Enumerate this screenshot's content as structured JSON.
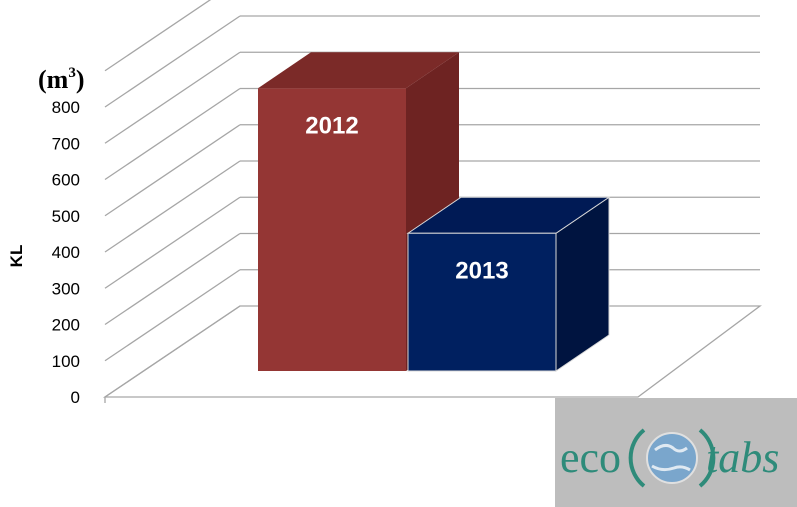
{
  "chart_data": {
    "type": "bar",
    "categories": [
      "2012",
      "2013"
    ],
    "values": [
      780,
      380
    ],
    "ylabel": "KL",
    "unit_base": "(m",
    "unit_sup": "3",
    "unit_close": ")",
    "ylim": [
      0,
      800
    ],
    "yticks": [
      0,
      100,
      200,
      300,
      400,
      500,
      600,
      700,
      800
    ],
    "grid": true,
    "three_d": true,
    "colors": [
      "#943634",
      "#002060"
    ],
    "side_colors": [
      "#6e2322",
      "#001440"
    ],
    "top_colors": [
      "#7b2a28",
      "#001a55"
    ]
  },
  "logo": {
    "left_text": "eco",
    "right_text": "tabs",
    "globe_icon": "globe-icon"
  }
}
